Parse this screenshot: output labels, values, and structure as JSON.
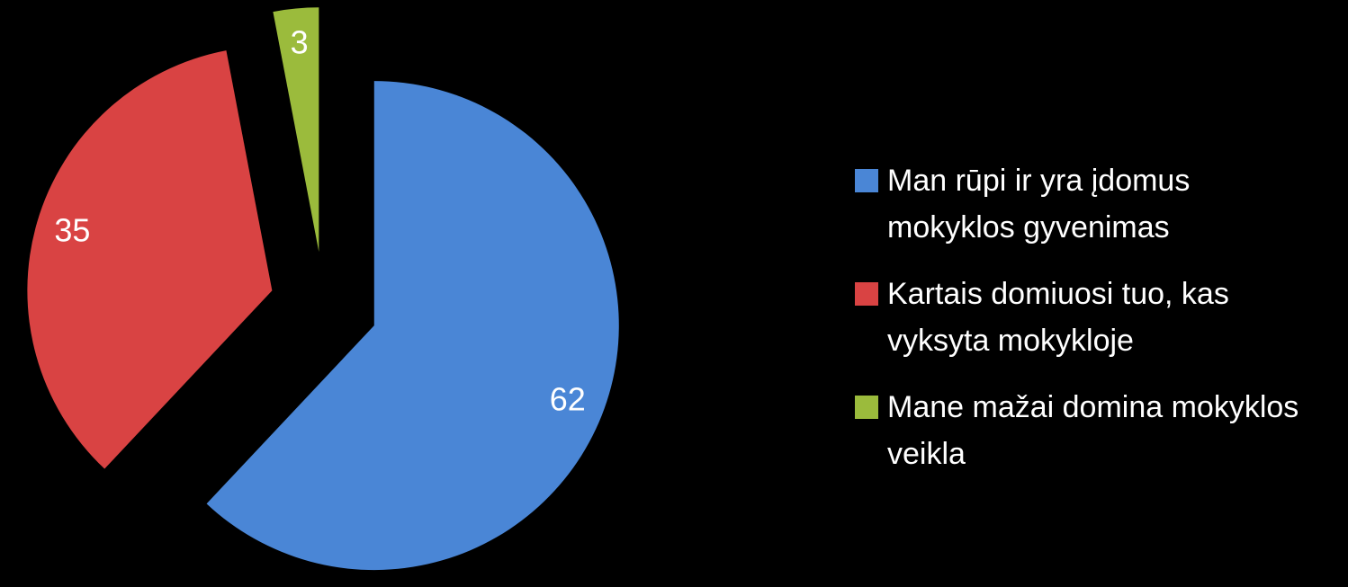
{
  "chart_data": {
    "type": "pie",
    "series": [
      {
        "name": "Man rūpi ir yra įdomus mokyklos gyvenimas",
        "color": "#4a86d6",
        "values": [
          62
        ]
      },
      {
        "name": "Kartais domiuosi tuo, kas vyksyta mokykloje",
        "color": "#d94343",
        "values": [
          35
        ]
      },
      {
        "name": "Mane mažai domina mokyklos veikla",
        "color": "#9bbb3c",
        "values": [
          3
        ]
      }
    ],
    "legend": "right"
  }
}
